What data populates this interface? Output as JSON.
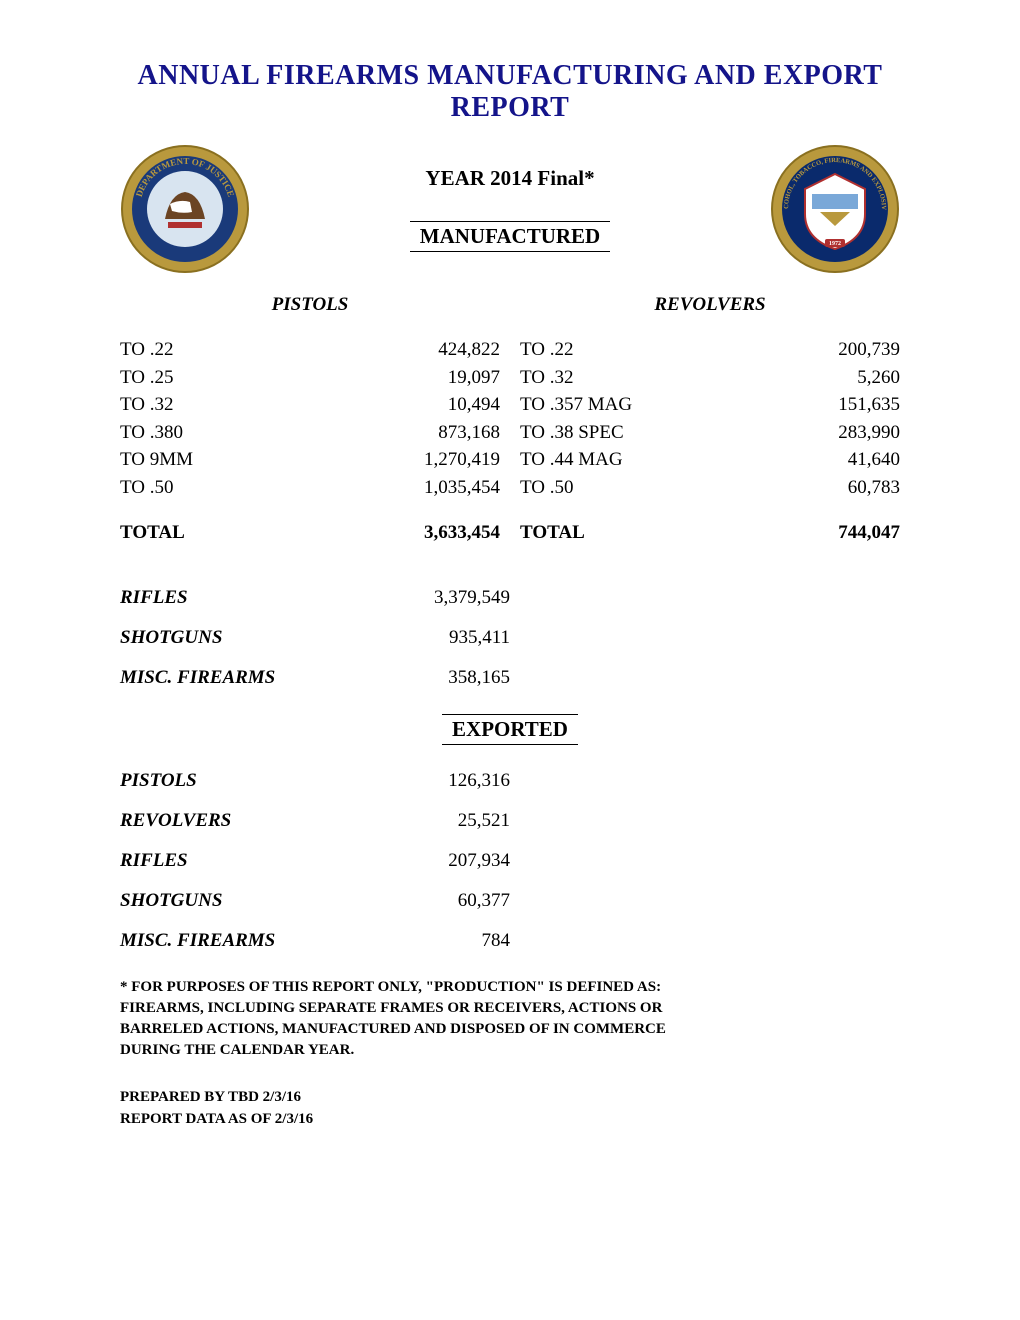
{
  "title": "ANNUAL FIREARMS MANUFACTURING AND EXPORT REPORT",
  "year_line": "YEAR 2014 Final*",
  "manufactured_heading": "MANUFACTURED",
  "exported_heading": "EXPORTED",
  "seals": {
    "doj": {
      "outer_color": "#b9993d",
      "inner_color": "#1a3a7a",
      "text": "DEPARTMENT OF JUSTICE"
    },
    "atf": {
      "outer_color": "#b9993d",
      "inner_color": "#0a2a6c",
      "text": "BUREAU OF ALCOHOL, TOBACCO, FIREARMS AND EXPLOSIVES",
      "year": "1972"
    }
  },
  "pistols": {
    "heading": "PISTOLS",
    "rows": [
      {
        "label": "TO .22",
        "value": "424,822"
      },
      {
        "label": "TO .25",
        "value": "19,097"
      },
      {
        "label": "TO .32",
        "value": "10,494"
      },
      {
        "label": "TO .380",
        "value": "873,168"
      },
      {
        "label": "TO 9MM",
        "value": "1,270,419"
      },
      {
        "label": "TO .50",
        "value": "1,035,454"
      }
    ],
    "total_label": "TOTAL",
    "total_value": "3,633,454"
  },
  "revolvers": {
    "heading": "REVOLVERS",
    "rows": [
      {
        "label": "TO .22",
        "value": "200,739"
      },
      {
        "label": "TO .32",
        "value": "5,260"
      },
      {
        "label": "TO .357 MAG",
        "value": "151,635"
      },
      {
        "label": "TO .38 SPEC",
        "value": "283,990"
      },
      {
        "label": "TO .44 MAG",
        "value": "41,640"
      },
      {
        "label": "TO .50",
        "value": "60,783"
      }
    ],
    "total_label": "TOTAL",
    "total_value": "744,047"
  },
  "manufactured_summary": [
    {
      "label": "RIFLES",
      "value": "3,379,549"
    },
    {
      "label": "SHOTGUNS",
      "value": "935,411"
    },
    {
      "label": "MISC. FIREARMS",
      "value": "358,165"
    }
  ],
  "exported": [
    {
      "label": "PISTOLS",
      "value": "126,316"
    },
    {
      "label": "REVOLVERS",
      "value": "25,521"
    },
    {
      "label": "RIFLES",
      "value": "207,934"
    },
    {
      "label": "SHOTGUNS",
      "value": "60,377"
    },
    {
      "label": "MISC. FIREARMS",
      "value": "784"
    }
  ],
  "footnote": "*  FOR  PURPOSES OF THIS REPORT ONLY, \"PRODUCTION\" IS DEFINED AS: FIREARMS, INCLUDING SEPARATE FRAMES OR RECEIVERS, ACTIONS OR BARRELED ACTIONS, MANUFACTURED AND DISPOSED OF IN COMMERCE DURING THE CALENDAR YEAR.",
  "prepared_by": "PREPARED BY TBD 2/3/16",
  "data_as_of": "REPORT DATA AS OF 2/3/16",
  "colors": {
    "title_color": "#14148a",
    "text_color": "#000000",
    "background": "#ffffff"
  },
  "typography": {
    "title_fontsize_pt": 21,
    "body_fontsize_pt": 14,
    "footnote_fontsize_pt": 11,
    "font_family": "Times New Roman"
  }
}
